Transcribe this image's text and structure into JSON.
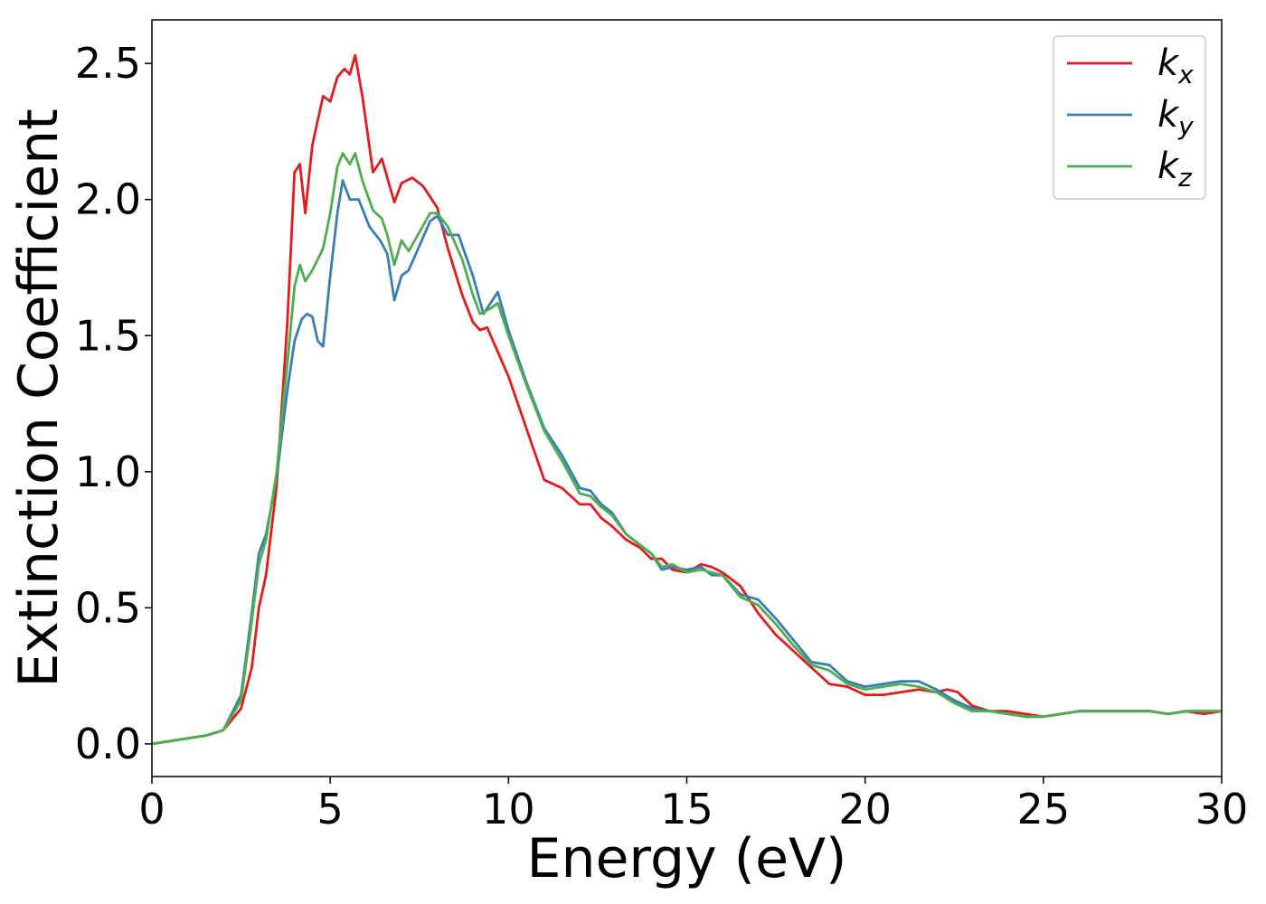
{
  "chart_data": {
    "type": "line",
    "title": "",
    "xlabel": "Energy (eV)",
    "ylabel": "Extinction Coefficient",
    "xlim": [
      0,
      30
    ],
    "ylim": [
      -0.12,
      2.66
    ],
    "xticks": [
      0,
      5,
      10,
      15,
      20,
      25,
      30
    ],
    "xtick_labels": [
      "0",
      "5",
      "10",
      "15",
      "20",
      "25",
      "30"
    ],
    "yticks": [
      0.0,
      0.5,
      1.0,
      1.5,
      2.0,
      2.5
    ],
    "ytick_labels": [
      "0.0",
      "0.5",
      "1.0",
      "1.5",
      "2.0",
      "2.5"
    ],
    "grid": false,
    "legend_position": "top-right",
    "series": [
      {
        "name": "k_x",
        "legend_base": "k",
        "legend_sub": "x",
        "color": "#e41a1c",
        "x": [
          0,
          0.5,
          1,
          1.5,
          2,
          2.5,
          2.8,
          3.0,
          3.2,
          3.5,
          3.8,
          4.0,
          4.15,
          4.3,
          4.5,
          4.8,
          5.0,
          5.2,
          5.4,
          5.55,
          5.7,
          5.9,
          6.2,
          6.45,
          6.6,
          6.8,
          7.0,
          7.3,
          7.6,
          8.0,
          8.3,
          8.7,
          9.0,
          9.2,
          9.4,
          9.6,
          10.0,
          10.5,
          11.0,
          11.5,
          12.0,
          12.3,
          12.6,
          12.9,
          13.3,
          13.7,
          14.0,
          14.3,
          14.6,
          15.0,
          15.4,
          15.7,
          16.0,
          16.5,
          17.0,
          17.5,
          18.0,
          18.5,
          19.0,
          19.5,
          20.0,
          20.5,
          21.0,
          21.5,
          22.0,
          22.3,
          22.6,
          23.0,
          23.5,
          24.0,
          24.5,
          25.0,
          25.5,
          26.0,
          26.5,
          27.0,
          27.5,
          28.0,
          28.5,
          29.0,
          29.5,
          30.0
        ],
        "y": [
          0.0,
          0.01,
          0.02,
          0.03,
          0.05,
          0.13,
          0.28,
          0.5,
          0.62,
          0.95,
          1.55,
          2.1,
          2.13,
          1.95,
          2.2,
          2.38,
          2.36,
          2.45,
          2.48,
          2.46,
          2.53,
          2.38,
          2.1,
          2.15,
          2.08,
          1.99,
          2.06,
          2.08,
          2.05,
          1.97,
          1.82,
          1.65,
          1.55,
          1.52,
          1.53,
          1.47,
          1.35,
          1.16,
          0.97,
          0.94,
          0.88,
          0.88,
          0.83,
          0.8,
          0.75,
          0.72,
          0.68,
          0.68,
          0.64,
          0.63,
          0.66,
          0.65,
          0.63,
          0.58,
          0.48,
          0.4,
          0.34,
          0.28,
          0.22,
          0.21,
          0.18,
          0.18,
          0.19,
          0.2,
          0.19,
          0.2,
          0.19,
          0.14,
          0.12,
          0.12,
          0.11,
          0.1,
          0.11,
          0.12,
          0.12,
          0.12,
          0.12,
          0.12,
          0.11,
          0.12,
          0.11,
          0.12
        ]
      },
      {
        "name": "k_y",
        "legend_base": "k",
        "legend_sub": "y",
        "color": "#377eb8",
        "x": [
          0,
          0.5,
          1,
          1.5,
          2,
          2.5,
          2.8,
          3.0,
          3.2,
          3.5,
          3.8,
          4.0,
          4.2,
          4.35,
          4.5,
          4.65,
          4.8,
          5.0,
          5.2,
          5.35,
          5.55,
          5.8,
          6.1,
          6.4,
          6.6,
          6.8,
          7.0,
          7.2,
          7.5,
          7.8,
          8.0,
          8.3,
          8.6,
          9.0,
          9.3,
          9.5,
          9.7,
          10.0,
          10.5,
          11.0,
          11.5,
          12.0,
          12.3,
          12.6,
          12.9,
          13.3,
          13.7,
          14.0,
          14.3,
          14.6,
          15.0,
          15.4,
          15.7,
          16.0,
          16.5,
          17.0,
          17.5,
          18.0,
          18.5,
          19.0,
          19.5,
          20.0,
          20.5,
          21.0,
          21.5,
          22.0,
          22.5,
          23.0,
          23.5,
          24.0,
          24.5,
          25.0,
          25.5,
          26.0,
          26.5,
          27.0,
          27.5,
          28.0,
          28.5,
          29.0,
          29.5,
          30.0
        ],
        "y": [
          0.0,
          0.01,
          0.02,
          0.03,
          0.05,
          0.18,
          0.48,
          0.7,
          0.77,
          0.98,
          1.3,
          1.48,
          1.56,
          1.58,
          1.57,
          1.48,
          1.46,
          1.72,
          1.95,
          2.07,
          2.0,
          2.0,
          1.9,
          1.85,
          1.8,
          1.63,
          1.72,
          1.74,
          1.83,
          1.92,
          1.94,
          1.87,
          1.87,
          1.72,
          1.58,
          1.62,
          1.66,
          1.52,
          1.33,
          1.16,
          1.06,
          0.94,
          0.93,
          0.88,
          0.85,
          0.77,
          0.73,
          0.7,
          0.64,
          0.65,
          0.64,
          0.65,
          0.62,
          0.62,
          0.55,
          0.53,
          0.46,
          0.38,
          0.3,
          0.29,
          0.23,
          0.21,
          0.22,
          0.23,
          0.23,
          0.2,
          0.16,
          0.13,
          0.12,
          0.11,
          0.1,
          0.1,
          0.11,
          0.12,
          0.12,
          0.12,
          0.12,
          0.12,
          0.11,
          0.12,
          0.12,
          0.12
        ]
      },
      {
        "name": "k_z",
        "legend_base": "k",
        "legend_sub": "z",
        "color": "#4daf4a",
        "x": [
          0,
          0.5,
          1,
          1.5,
          2,
          2.5,
          2.8,
          3.0,
          3.2,
          3.5,
          3.8,
          4.0,
          4.15,
          4.3,
          4.5,
          4.8,
          5.0,
          5.2,
          5.35,
          5.55,
          5.7,
          5.9,
          6.2,
          6.45,
          6.6,
          6.8,
          7.0,
          7.2,
          7.5,
          7.8,
          8.0,
          8.3,
          8.7,
          9.0,
          9.2,
          9.5,
          9.7,
          10.0,
          10.5,
          11.0,
          11.5,
          12.0,
          12.3,
          12.6,
          12.9,
          13.3,
          13.7,
          14.0,
          14.3,
          14.6,
          15.0,
          15.4,
          15.7,
          16.0,
          16.5,
          17.0,
          17.5,
          18.0,
          18.5,
          19.0,
          19.5,
          20.0,
          20.5,
          21.0,
          21.5,
          22.0,
          22.5,
          23.0,
          23.5,
          24.0,
          24.5,
          25.0,
          25.5,
          26.0,
          26.5,
          27.0,
          27.5,
          28.0,
          28.5,
          29.0,
          29.5,
          30.0
        ],
        "y": [
          0.0,
          0.01,
          0.02,
          0.03,
          0.05,
          0.16,
          0.45,
          0.66,
          0.75,
          1.0,
          1.4,
          1.68,
          1.76,
          1.7,
          1.74,
          1.82,
          1.95,
          2.12,
          2.17,
          2.13,
          2.17,
          2.07,
          1.96,
          1.93,
          1.87,
          1.76,
          1.85,
          1.81,
          1.88,
          1.95,
          1.95,
          1.9,
          1.78,
          1.65,
          1.58,
          1.6,
          1.62,
          1.5,
          1.32,
          1.15,
          1.04,
          0.92,
          0.91,
          0.87,
          0.84,
          0.77,
          0.73,
          0.7,
          0.65,
          0.66,
          0.63,
          0.64,
          0.63,
          0.62,
          0.54,
          0.51,
          0.44,
          0.36,
          0.29,
          0.27,
          0.22,
          0.2,
          0.21,
          0.22,
          0.21,
          0.19,
          0.15,
          0.12,
          0.12,
          0.11,
          0.1,
          0.1,
          0.11,
          0.12,
          0.12,
          0.12,
          0.12,
          0.12,
          0.11,
          0.12,
          0.12,
          0.12
        ]
      }
    ]
  }
}
